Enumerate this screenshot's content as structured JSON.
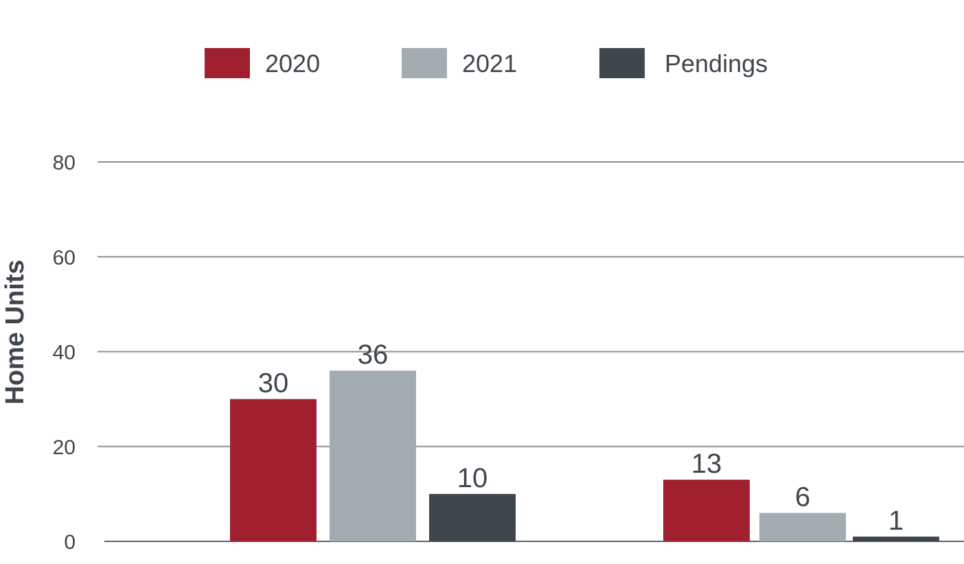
{
  "chart_data": {
    "type": "bar",
    "title": "",
    "xlabel": "",
    "ylabel": "Home Units",
    "ylim": [
      0,
      80
    ],
    "yticks": [
      0,
      20,
      40,
      60,
      80
    ],
    "grid": true,
    "legend_position": "top-center",
    "categories": [
      "",
      ""
    ],
    "series": [
      {
        "name": "2020",
        "color": "#a02030",
        "values": [
          30,
          13
        ]
      },
      {
        "name": "2021",
        "color": "#a3acb1",
        "values": [
          36,
          6
        ]
      },
      {
        "name": "Pendings",
        "color": "#3f464e",
        "values": [
          10,
          1
        ]
      }
    ]
  }
}
